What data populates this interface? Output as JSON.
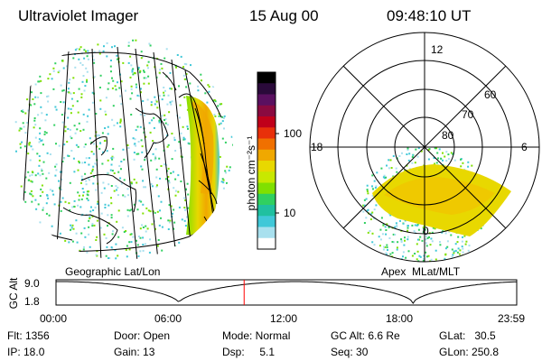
{
  "header": {
    "instrument": "Ultraviolet Imager",
    "date": "15 Aug 00",
    "time": "09:48:10 UT"
  },
  "colorbar": {
    "label": "photon cm⁻²s⁻¹",
    "ticks": [
      "100",
      "10"
    ],
    "colors": [
      "#000000",
      "#2a0a3a",
      "#5a1060",
      "#8a0a40",
      "#c0001a",
      "#e8300a",
      "#f07000",
      "#f0a800",
      "#e8d800",
      "#c8e800",
      "#80e000",
      "#30d060",
      "#20c0a0",
      "#40c8d8",
      "#a8e0ee",
      "#ffffff"
    ]
  },
  "geo_panel": {
    "caption": "Geographic Lat/Lon",
    "aurora_colors": [
      "#40c8d8",
      "#30d060",
      "#80e000",
      "#c8e800",
      "#e8d800",
      "#f0a800"
    ]
  },
  "polar_panel": {
    "caption": "Apex  MLat/MLT",
    "mlt_labels": {
      "top": "12",
      "left": "18",
      "right": "6",
      "bottom": "0"
    },
    "lat_labels": [
      "60",
      "70",
      "80"
    ]
  },
  "altitude_plot": {
    "ylabel": "GC Alt",
    "yticks": [
      "9.0",
      "1.8"
    ],
    "xticks": [
      "00:00",
      "06:00",
      "12:00",
      "18:00",
      "23:59"
    ],
    "marker_time_hours": 9.8,
    "marker_color": "#ff0000"
  },
  "info": {
    "flt": "Flt: 1356",
    "ip": "IP: 18.0",
    "door": "Door: Open",
    "gain": "Gain: 13",
    "mode": "Mode: Normal",
    "dsp": "Dsp:     5.1",
    "gcalt": "GC Alt: 6.6 Re",
    "seq": "Seq: 30",
    "glat": "GLat:   30.5",
    "glon": "GLon: 250.8"
  }
}
